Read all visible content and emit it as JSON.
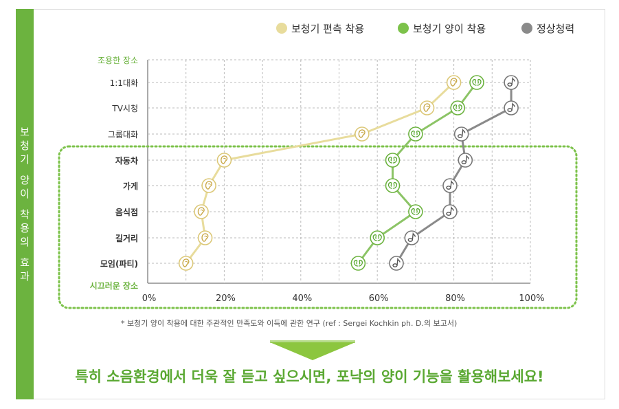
{
  "sidebar": {
    "lines": [
      "보",
      "청",
      "기",
      "",
      "양",
      "이",
      "",
      "착",
      "용",
      "의",
      "",
      "효",
      "과"
    ]
  },
  "chart_data": {
    "type": "line",
    "title": "",
    "top_category_note": "조용한 장소",
    "bottom_category_note": "시끄러운 장소",
    "categories": [
      "1:1대화",
      "TV시청",
      "그룹대화",
      "자동차",
      "가게",
      "음식점",
      "길거리",
      "모임(파티)"
    ],
    "bold_categories": [
      "자동차",
      "가게",
      "음식점",
      "길거리",
      "모임(파티)"
    ],
    "x_ticks": [
      "0%",
      "20%",
      "40%",
      "60%",
      "80%",
      "100%"
    ],
    "xlim": [
      0,
      100
    ],
    "legend_position": "top-right",
    "series": [
      {
        "name": "보청기 편측 착용",
        "color": "#e8dc9c",
        "icon": "ear-icon",
        "values": [
          80,
          73,
          56,
          20,
          16,
          14,
          15,
          10
        ]
      },
      {
        "name": "보청기 양이 착용",
        "color": "#8cc466",
        "icon": "ears-icon",
        "values": [
          86,
          81,
          70,
          64,
          64,
          70,
          60,
          55
        ]
      },
      {
        "name": "정상청력",
        "color": "#8a8a8a",
        "icon": "note-icon",
        "values": [
          95,
          95,
          82,
          83,
          79,
          79,
          69,
          65
        ]
      }
    ]
  },
  "footnote": "* 보청기 양이 착용에 대한 주관적인 만족도와 이득에 관한 연구 (ref : Sergei Kochkin ph. D.의 보고서)",
  "headline": "특히 소음환경에서 더욱 잘 듣고 싶으시면, 포낙의 양이 기능을 활용해보세요!",
  "colors": {
    "accent": "#6cb33f",
    "headline": "#5aa832",
    "highlight_box": "#7cc24a"
  }
}
